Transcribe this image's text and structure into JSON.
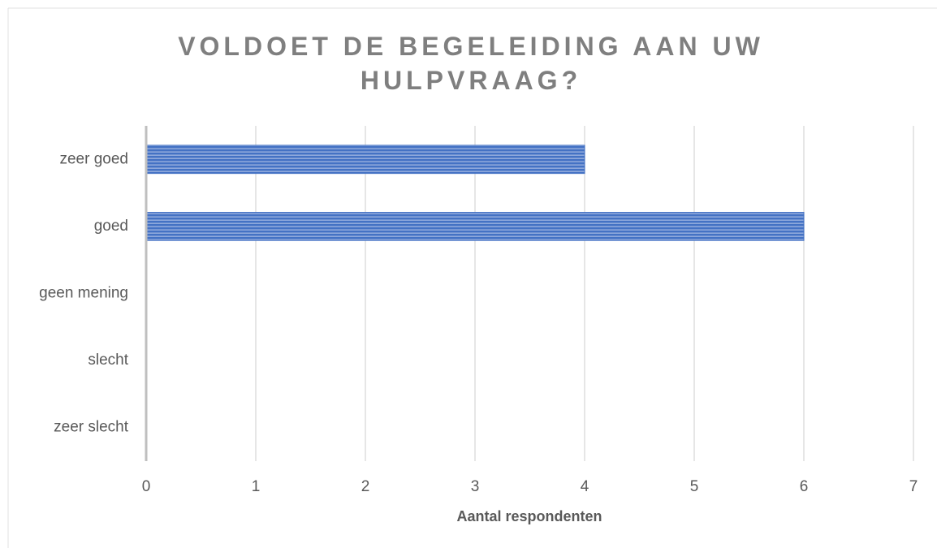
{
  "chart_data": {
    "type": "hbar",
    "title": "VOLDOET DE BEGELEIDING AAN UW HULPVRAAG?",
    "categories": [
      "zeer goed",
      "goed",
      "geen mening",
      "slecht",
      "zeer slecht"
    ],
    "values": [
      4,
      6,
      0,
      0,
      0
    ],
    "color": "#4472c4",
    "xlabel": "Aantal respondenten",
    "xlim": [
      0,
      7
    ],
    "xticks": [
      0,
      1,
      2,
      3,
      4,
      5,
      6,
      7
    ],
    "grid": true
  }
}
